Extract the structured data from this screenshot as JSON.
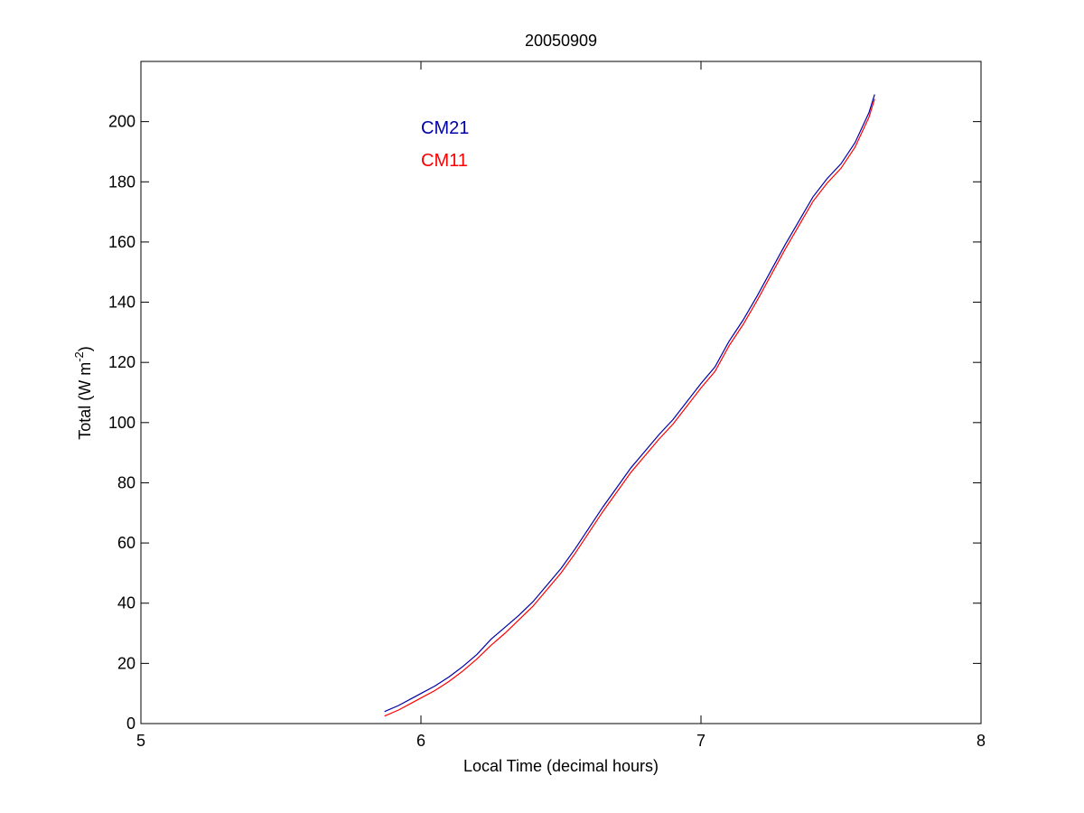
{
  "chart_data": {
    "type": "line",
    "title": "20050909",
    "xlabel": "Local Time (decimal hours)",
    "ylabel": {
      "prefix": "Total (W m",
      "superscript": "-2",
      "suffix": ")"
    },
    "xlim": [
      5,
      8
    ],
    "ylim": [
      0,
      220
    ],
    "xticks": [
      5,
      6,
      7,
      8
    ],
    "yticks": [
      0,
      20,
      40,
      60,
      80,
      100,
      120,
      140,
      160,
      180,
      200
    ],
    "grid": false,
    "legend_placement": "top-left",
    "series": [
      {
        "name": "CM21",
        "color": "#0000aa",
        "x": [
          5.87,
          5.92,
          5.97,
          6.0,
          6.05,
          6.1,
          6.15,
          6.2,
          6.25,
          6.3,
          6.35,
          6.4,
          6.45,
          6.5,
          6.55,
          6.6,
          6.65,
          6.7,
          6.75,
          6.8,
          6.85,
          6.9,
          6.95,
          7.0,
          7.05,
          7.1,
          7.15,
          7.2,
          7.25,
          7.3,
          7.35,
          7.4,
          7.45,
          7.5,
          7.55,
          7.6,
          7.62
        ],
        "values": [
          4,
          6,
          8.5,
          10,
          12.5,
          15.5,
          19,
          23,
          28,
          32,
          36,
          40.5,
          46,
          51.5,
          58,
          65,
          72,
          78.5,
          85,
          90.5,
          96,
          101,
          107,
          113,
          118.5,
          127,
          134,
          142,
          150.5,
          159,
          167,
          175,
          181,
          186,
          193,
          203,
          209
        ]
      },
      {
        "name": "CM11",
        "color": "#ff0000",
        "x": [
          5.87,
          5.92,
          5.97,
          6.0,
          6.05,
          6.1,
          6.15,
          6.2,
          6.25,
          6.3,
          6.35,
          6.4,
          6.45,
          6.5,
          6.55,
          6.6,
          6.65,
          6.7,
          6.75,
          6.8,
          6.85,
          6.9,
          6.95,
          7.0,
          7.05,
          7.1,
          7.15,
          7.2,
          7.25,
          7.3,
          7.35,
          7.4,
          7.45,
          7.5,
          7.55,
          7.6,
          7.62
        ],
        "values": [
          2.5,
          4.5,
          7,
          8.5,
          11,
          14,
          17.5,
          21.5,
          26,
          30,
          34.5,
          39,
          44.5,
          50,
          56.5,
          63.5,
          70.5,
          77,
          83.5,
          89,
          94.5,
          99.5,
          105.5,
          111.5,
          117,
          125.5,
          132.5,
          140.5,
          149,
          157.5,
          165.5,
          173.5,
          179.5,
          184.5,
          191.5,
          201.5,
          207.5
        ]
      }
    ]
  }
}
